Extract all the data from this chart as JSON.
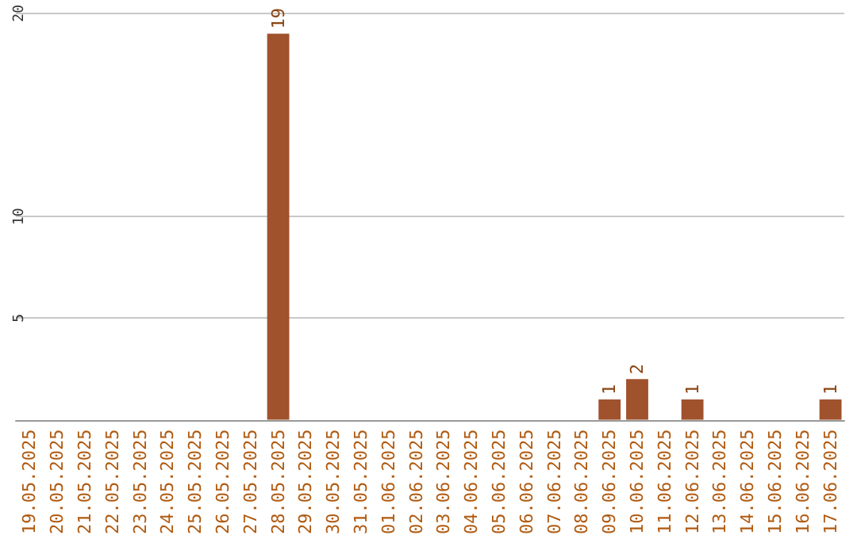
{
  "chart_data": {
    "type": "bar",
    "categories": [
      "19.05.2025",
      "20.05.2025",
      "21.05.2025",
      "22.05.2025",
      "23.05.2025",
      "24.05.2025",
      "25.05.2025",
      "26.05.2025",
      "27.05.2025",
      "28.05.2025",
      "29.05.2025",
      "30.05.2025",
      "31.05.2025",
      "01.06.2025",
      "02.06.2025",
      "03.06.2025",
      "04.06.2025",
      "05.06.2025",
      "06.06.2025",
      "07.06.2025",
      "08.06.2025",
      "09.06.2025",
      "10.06.2025",
      "11.06.2025",
      "12.06.2025",
      "13.06.2025",
      "14.06.2025",
      "15.06.2025",
      "16.06.2025",
      "17.06.2025"
    ],
    "values": [
      0,
      0,
      0,
      0,
      0,
      0,
      0,
      0,
      0,
      19,
      0,
      0,
      0,
      0,
      0,
      0,
      0,
      0,
      0,
      0,
      0,
      1,
      2,
      0,
      1,
      0,
      0,
      0,
      0,
      1
    ],
    "value_labels": [
      null,
      null,
      null,
      null,
      null,
      null,
      null,
      null,
      null,
      "19",
      null,
      null,
      null,
      null,
      null,
      null,
      null,
      null,
      null,
      null,
      null,
      "1",
      "2",
      null,
      "1",
      null,
      null,
      null,
      null,
      "1"
    ],
    "color": "#a0522d",
    "ylim": [
      0,
      20
    ],
    "yticks": [
      5,
      10,
      20
    ],
    "grid": "y"
  }
}
